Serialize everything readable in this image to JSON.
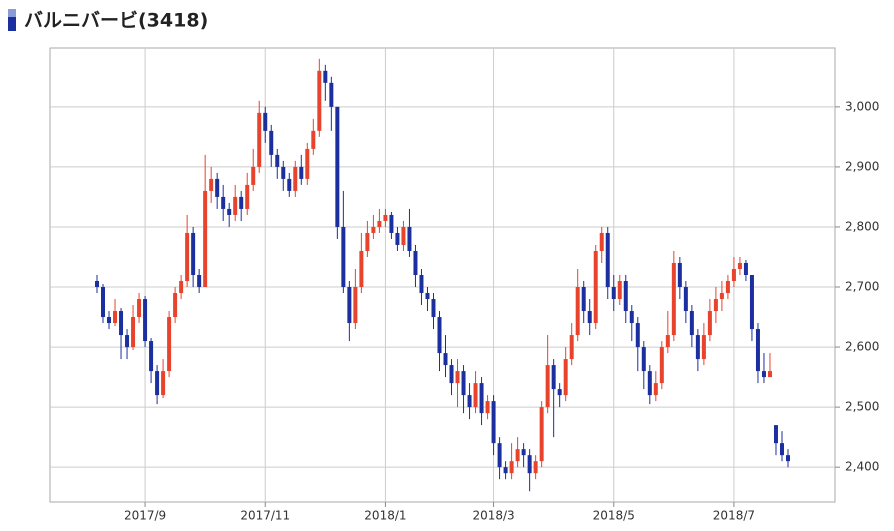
{
  "chart_data": {
    "type": "candlestick",
    "title": "バルニバービ(3418)",
    "categories": [
      null,
      null,
      null,
      null,
      null,
      null,
      null,
      null,
      "2017/9",
      null,
      null,
      null,
      null,
      null,
      null,
      null,
      null,
      null,
      null,
      null,
      null,
      null,
      null,
      null,
      null,
      null,
      null,
      null,
      "2017/11",
      null,
      null,
      null,
      null,
      null,
      null,
      null,
      null,
      null,
      null,
      null,
      null,
      null,
      null,
      null,
      null,
      null,
      null,
      null,
      "2018/1",
      null,
      null,
      null,
      null,
      null,
      null,
      null,
      null,
      null,
      null,
      null,
      null,
      null,
      null,
      null,
      null,
      null,
      "2018/3",
      null,
      null,
      null,
      null,
      null,
      null,
      null,
      null,
      null,
      null,
      null,
      null,
      null,
      null,
      null,
      null,
      null,
      null,
      null,
      "2018/5",
      null,
      null,
      null,
      null,
      null,
      null,
      null,
      null,
      null,
      null,
      null,
      null,
      null,
      null,
      null,
      null,
      null,
      null,
      null,
      "2018/7",
      null,
      null,
      null,
      null,
      null,
      null,
      null,
      null,
      null
    ],
    "open": [
      2710,
      2700,
      2650,
      2640,
      2660,
      2620,
      2600,
      2650,
      2680,
      2610,
      2560,
      2520,
      2560,
      2650,
      2690,
      2710,
      2790,
      2720,
      2700,
      2860,
      2880,
      2850,
      2830,
      2820,
      2850,
      2830,
      2870,
      2900,
      2990,
      2960,
      2920,
      2900,
      2880,
      2860,
      2900,
      2880,
      2930,
      2960,
      3060,
      3040,
      3000,
      2800,
      2700,
      2640,
      2700,
      2760,
      2790,
      2800,
      2810,
      2820,
      2790,
      2770,
      2800,
      2760,
      2720,
      2690,
      2680,
      2650,
      2590,
      2570,
      2540,
      2560,
      2520,
      2500,
      2540,
      2490,
      2510,
      2440,
      2400,
      2390,
      2410,
      2430,
      2420,
      2390,
      2410,
      2500,
      2570,
      2530,
      2520,
      2580,
      2620,
      2700,
      2660,
      2640,
      2760,
      2790,
      2700,
      2680,
      2710,
      2660,
      2640,
      2600,
      2560,
      2520,
      2540,
      2600,
      2620,
      2740,
      2700,
      2660,
      2620,
      2580,
      2620,
      2660,
      2680,
      2690,
      2710,
      2730,
      2740,
      2720,
      2630,
      2560,
      2550,
      2470,
      2440,
      2420
    ],
    "high": [
      2720,
      2705,
      2660,
      2680,
      2665,
      2630,
      2670,
      2690,
      2685,
      2615,
      2570,
      2580,
      2660,
      2700,
      2720,
      2820,
      2800,
      2730,
      2920,
      2900,
      2890,
      2870,
      2840,
      2870,
      2860,
      2890,
      2930,
      3010,
      3000,
      2970,
      2930,
      2910,
      2890,
      2910,
      2920,
      2940,
      2980,
      3080,
      3070,
      3050,
      3000,
      2860,
      2710,
      2730,
      2790,
      2810,
      2820,
      2830,
      2830,
      2825,
      2800,
      2810,
      2830,
      2770,
      2730,
      2700,
      2690,
      2660,
      2620,
      2580,
      2580,
      2570,
      2540,
      2560,
      2550,
      2520,
      2520,
      2450,
      2410,
      2440,
      2450,
      2440,
      2430,
      2420,
      2510,
      2620,
      2580,
      2540,
      2600,
      2640,
      2730,
      2710,
      2680,
      2770,
      2800,
      2800,
      2720,
      2720,
      2720,
      2670,
      2650,
      2610,
      2570,
      2560,
      2610,
      2660,
      2760,
      2750,
      2710,
      2670,
      2630,
      2640,
      2680,
      2700,
      2710,
      2720,
      2750,
      2750,
      2745,
      2720,
      2640,
      2590,
      2590,
      2470,
      2460,
      2430
    ],
    "low": [
      2690,
      2640,
      2630,
      2635,
      2580,
      2580,
      2595,
      2640,
      2600,
      2540,
      2505,
      2515,
      2550,
      2640,
      2680,
      2700,
      2700,
      2690,
      2700,
      2840,
      2830,
      2810,
      2800,
      2810,
      2810,
      2820,
      2860,
      2890,
      2940,
      2900,
      2880,
      2860,
      2850,
      2850,
      2870,
      2870,
      2920,
      2950,
      3010,
      2960,
      2780,
      2690,
      2610,
      2630,
      2690,
      2750,
      2780,
      2790,
      2800,
      2780,
      2760,
      2760,
      2750,
      2700,
      2670,
      2660,
      2630,
      2560,
      2550,
      2520,
      2500,
      2490,
      2480,
      2490,
      2470,
      2480,
      2420,
      2380,
      2380,
      2380,
      2400,
      2400,
      2360,
      2380,
      2400,
      2490,
      2450,
      2500,
      2510,
      2570,
      2610,
      2640,
      2620,
      2630,
      2740,
      2680,
      2660,
      2670,
      2640,
      2610,
      2560,
      2530,
      2505,
      2510,
      2530,
      2590,
      2610,
      2680,
      2640,
      2600,
      2560,
      2570,
      2610,
      2640,
      2660,
      2680,
      2700,
      2720,
      2710,
      2610,
      2540,
      2540,
      2550,
      2420,
      2410,
      2400
    ],
    "close": [
      2700,
      2650,
      2640,
      2660,
      2620,
      2600,
      2650,
      2680,
      2610,
      2560,
      2520,
      2560,
      2650,
      2690,
      2710,
      2790,
      2720,
      2700,
      2860,
      2880,
      2850,
      2830,
      2820,
      2850,
      2830,
      2870,
      2900,
      2990,
      2960,
      2920,
      2900,
      2880,
      2860,
      2900,
      2880,
      2930,
      2960,
      3060,
      3040,
      3000,
      2800,
      2700,
      2640,
      2700,
      2760,
      2790,
      2800,
      2810,
      2820,
      2790,
      2770,
      2800,
      2760,
      2720,
      2690,
      2680,
      2650,
      2590,
      2570,
      2540,
      2560,
      2520,
      2500,
      2540,
      2490,
      2510,
      2440,
      2400,
      2390,
      2410,
      2430,
      2420,
      2390,
      2410,
      2500,
      2570,
      2530,
      2520,
      2580,
      2620,
      2700,
      2660,
      2640,
      2760,
      2790,
      2700,
      2680,
      2710,
      2660,
      2640,
      2600,
      2560,
      2520,
      2540,
      2600,
      2620,
      2740,
      2700,
      2660,
      2620,
      2580,
      2620,
      2660,
      2680,
      2690,
      2710,
      2730,
      2740,
      2720,
      2630,
      2560,
      2550,
      2560,
      2440,
      2420,
      2410
    ],
    "up_color": "#e8432c",
    "down_color": "#1b2f9e",
    "ylim": [
      2342,
      3098
    ],
    "yticks": [
      {
        "value": 2400,
        "label": "2,400"
      },
      {
        "value": 2500,
        "label": "2,500"
      },
      {
        "value": 2600,
        "label": "2,600"
      },
      {
        "value": 2700,
        "label": "2,700"
      },
      {
        "value": 2800,
        "label": "2,800"
      },
      {
        "value": 2900,
        "label": "2,900"
      },
      {
        "value": 3000,
        "label": "3,000"
      }
    ],
    "grid": true
  }
}
